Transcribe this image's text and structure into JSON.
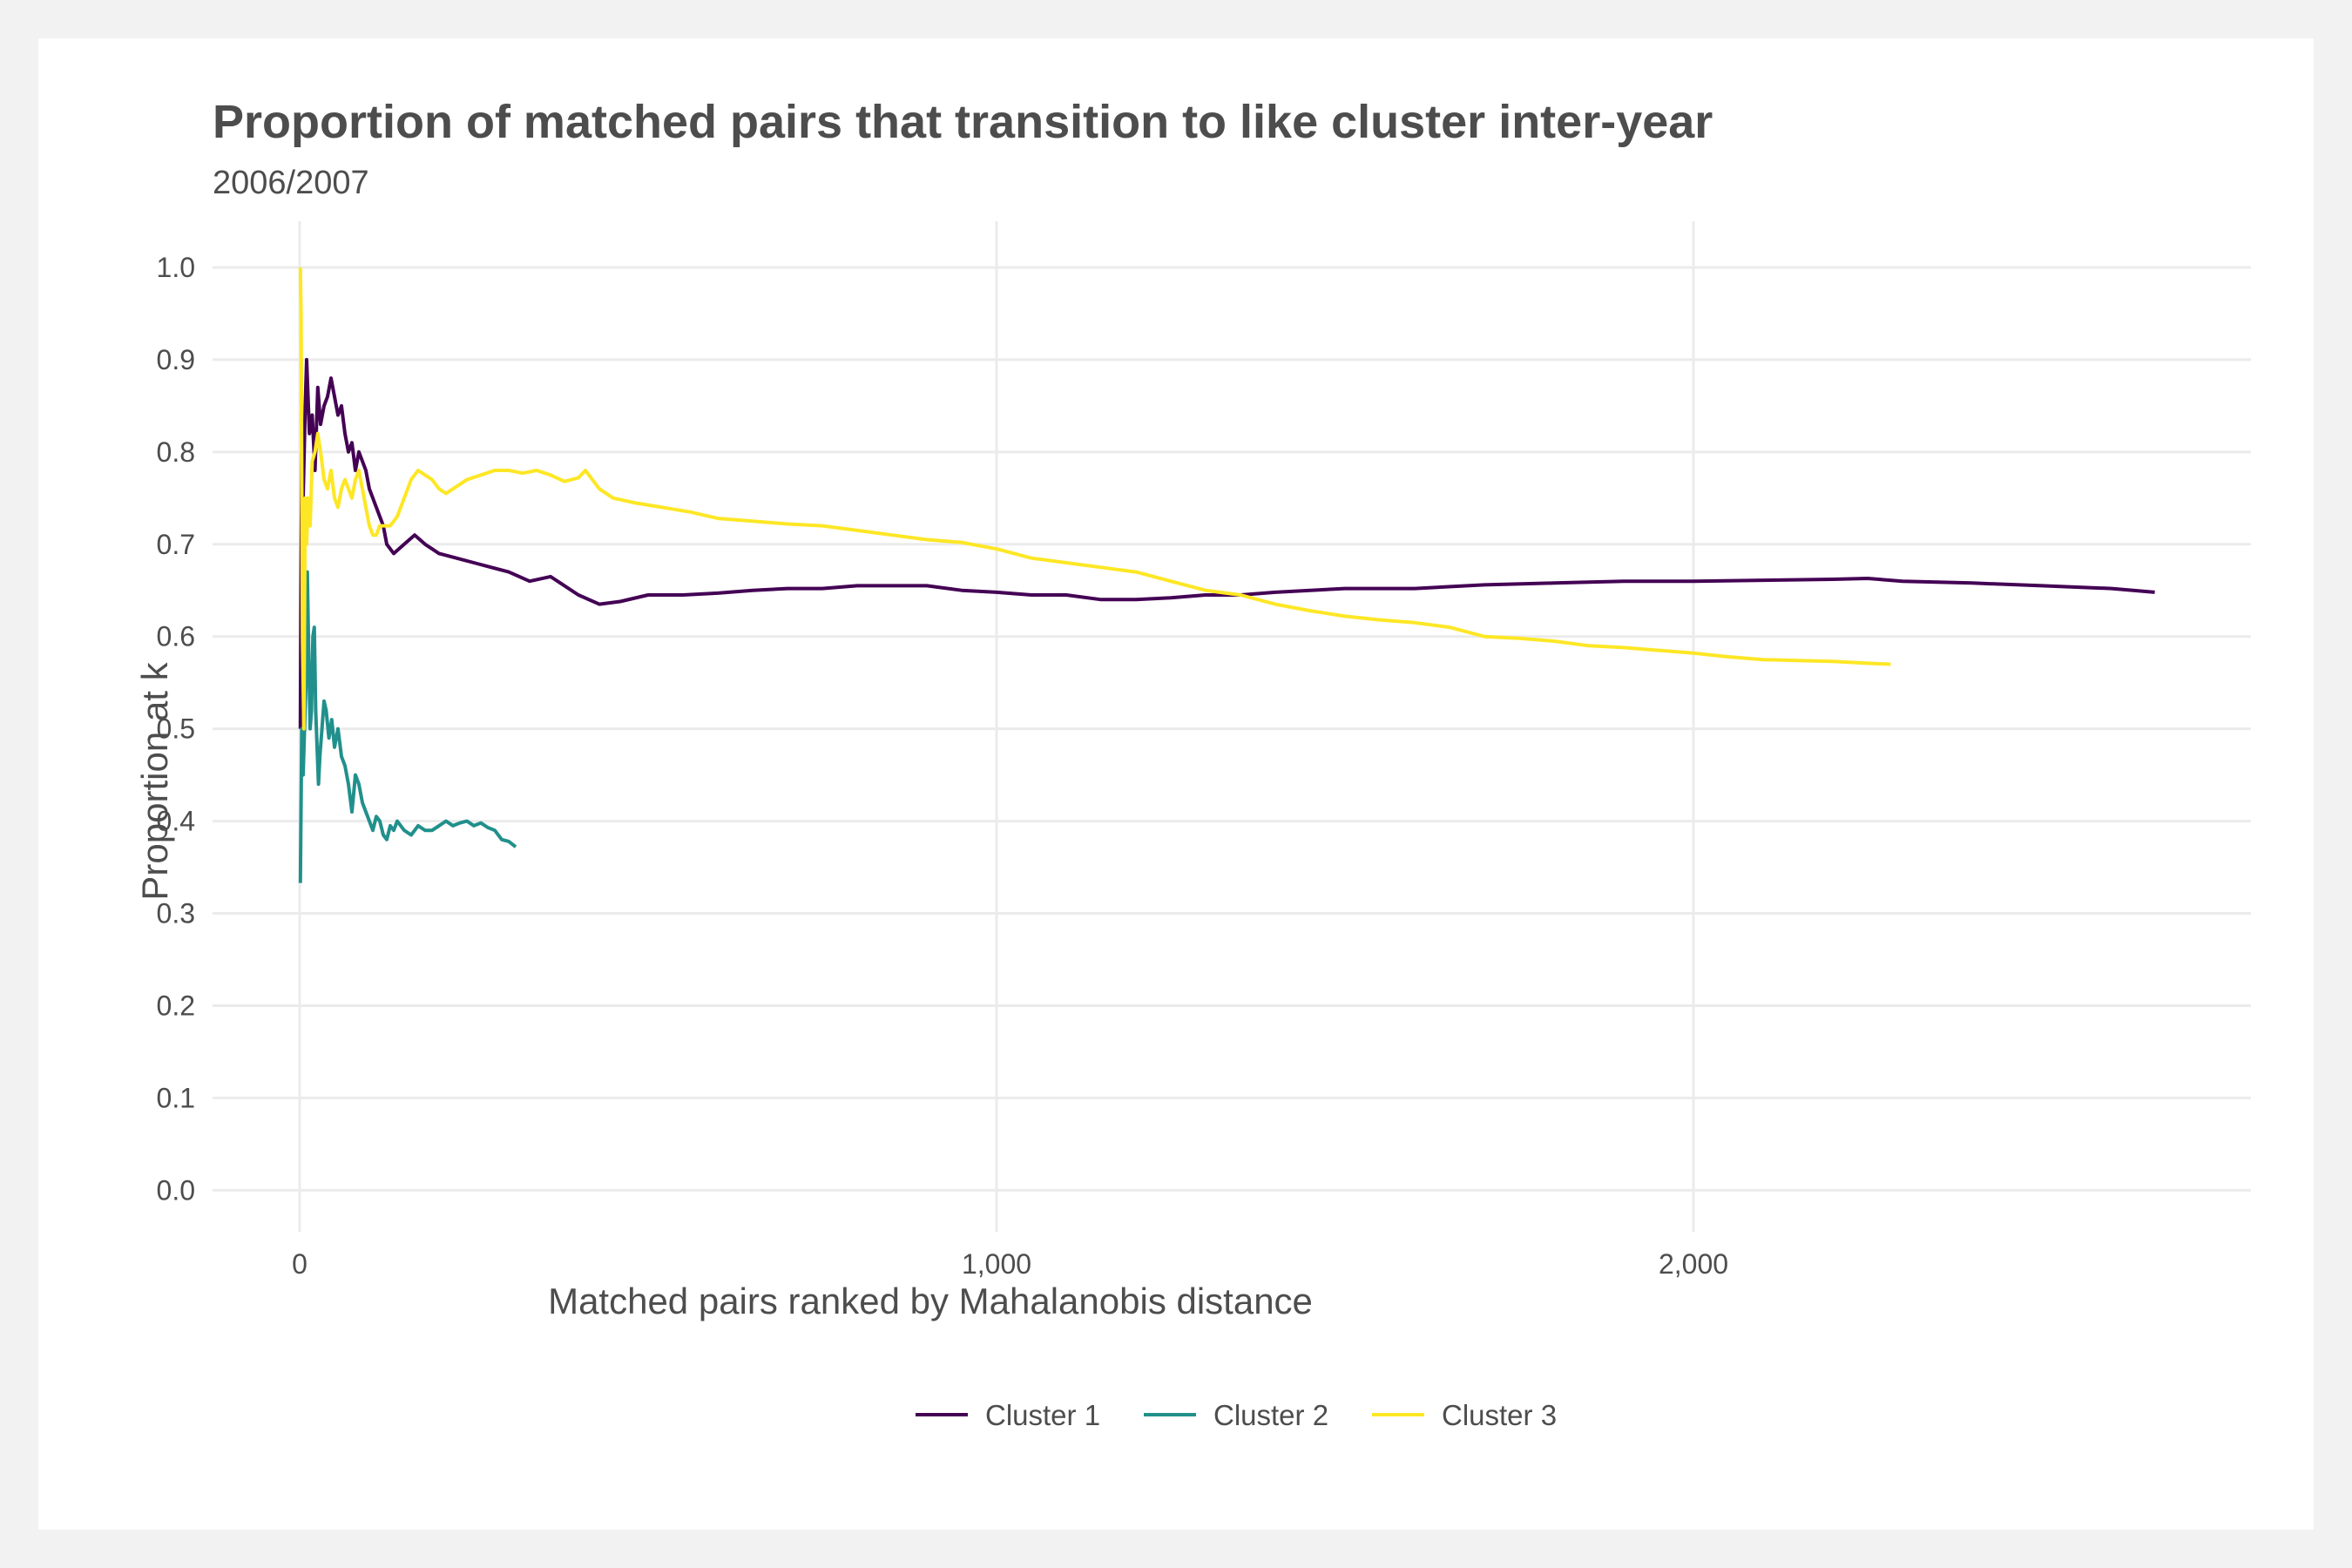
{
  "chart_data": {
    "type": "line",
    "title": "Proportion of matched pairs that transition to like cluster inter-year",
    "subtitle": "2006/2007",
    "xlabel": "Matched pairs ranked by Mahalanobis distance",
    "ylabel": "Proportion at k",
    "xlim": [
      -125,
      2800
    ],
    "ylim": [
      -0.045,
      1.05
    ],
    "x_ticks": [
      0,
      1000,
      2000
    ],
    "x_tick_labels": [
      "0",
      "1,000",
      "2,000"
    ],
    "y_ticks": [
      0.0,
      0.1,
      0.2,
      0.3,
      0.4,
      0.5,
      0.6,
      0.7,
      0.8,
      0.9,
      1.0
    ],
    "y_tick_labels": [
      "0.0",
      "0.1",
      "0.2",
      "0.3",
      "0.4",
      "0.5",
      "0.6",
      "0.7",
      "0.8",
      "0.9",
      "1.0"
    ],
    "grid": true,
    "legend_position": "bottom",
    "series": [
      {
        "name": "Cluster 1",
        "color": "#440154",
        "points": [
          [
            1,
            0.5
          ],
          [
            3,
            0.8
          ],
          [
            5,
            0.75
          ],
          [
            8,
            0.85
          ],
          [
            10,
            0.9
          ],
          [
            14,
            0.82
          ],
          [
            18,
            0.84
          ],
          [
            22,
            0.78
          ],
          [
            26,
            0.87
          ],
          [
            30,
            0.83
          ],
          [
            35,
            0.85
          ],
          [
            40,
            0.86
          ],
          [
            45,
            0.88
          ],
          [
            50,
            0.86
          ],
          [
            55,
            0.84
          ],
          [
            60,
            0.85
          ],
          [
            65,
            0.82
          ],
          [
            70,
            0.8
          ],
          [
            75,
            0.81
          ],
          [
            80,
            0.78
          ],
          [
            85,
            0.8
          ],
          [
            90,
            0.79
          ],
          [
            95,
            0.78
          ],
          [
            100,
            0.76
          ],
          [
            105,
            0.75
          ],
          [
            110,
            0.74
          ],
          [
            115,
            0.73
          ],
          [
            120,
            0.72
          ],
          [
            125,
            0.7
          ],
          [
            135,
            0.69
          ],
          [
            150,
            0.7
          ],
          [
            165,
            0.71
          ],
          [
            180,
            0.7
          ],
          [
            200,
            0.69
          ],
          [
            225,
            0.685
          ],
          [
            250,
            0.68
          ],
          [
            275,
            0.675
          ],
          [
            300,
            0.67
          ],
          [
            330,
            0.66
          ],
          [
            360,
            0.665
          ],
          [
            380,
            0.655
          ],
          [
            400,
            0.645
          ],
          [
            430,
            0.635
          ],
          [
            460,
            0.638
          ],
          [
            500,
            0.645
          ],
          [
            550,
            0.645
          ],
          [
            600,
            0.647
          ],
          [
            650,
            0.65
          ],
          [
            700,
            0.652
          ],
          [
            750,
            0.652
          ],
          [
            800,
            0.655
          ],
          [
            850,
            0.655
          ],
          [
            900,
            0.655
          ],
          [
            950,
            0.65
          ],
          [
            1000,
            0.648
          ],
          [
            1050,
            0.645
          ],
          [
            1100,
            0.645
          ],
          [
            1150,
            0.64
          ],
          [
            1200,
            0.64
          ],
          [
            1250,
            0.642
          ],
          [
            1300,
            0.645
          ],
          [
            1350,
            0.645
          ],
          [
            1400,
            0.648
          ],
          [
            1450,
            0.65
          ],
          [
            1500,
            0.652
          ],
          [
            1600,
            0.652
          ],
          [
            1700,
            0.656
          ],
          [
            1800,
            0.658
          ],
          [
            1900,
            0.66
          ],
          [
            2000,
            0.66
          ],
          [
            2100,
            0.661
          ],
          [
            2200,
            0.662
          ],
          [
            2250,
            0.663
          ],
          [
            2300,
            0.66
          ],
          [
            2400,
            0.658
          ],
          [
            2500,
            0.655
          ],
          [
            2600,
            0.652
          ],
          [
            2662,
            0.648
          ]
        ]
      },
      {
        "name": "Cluster 2",
        "color": "#21908C",
        "points": [
          [
            1,
            0.333
          ],
          [
            3,
            0.5
          ],
          [
            5,
            0.45
          ],
          [
            7,
            0.5
          ],
          [
            9,
            0.55
          ],
          [
            11,
            0.67
          ],
          [
            13,
            0.58
          ],
          [
            15,
            0.5
          ],
          [
            17,
            0.52
          ],
          [
            19,
            0.6
          ],
          [
            21,
            0.61
          ],
          [
            23,
            0.52
          ],
          [
            25,
            0.48
          ],
          [
            27,
            0.44
          ],
          [
            29,
            0.47
          ],
          [
            32,
            0.5
          ],
          [
            35,
            0.53
          ],
          [
            38,
            0.52
          ],
          [
            42,
            0.49
          ],
          [
            46,
            0.51
          ],
          [
            50,
            0.48
          ],
          [
            55,
            0.5
          ],
          [
            60,
            0.47
          ],
          [
            65,
            0.46
          ],
          [
            70,
            0.44
          ],
          [
            75,
            0.41
          ],
          [
            80,
            0.45
          ],
          [
            85,
            0.44
          ],
          [
            90,
            0.42
          ],
          [
            95,
            0.41
          ],
          [
            100,
            0.4
          ],
          [
            105,
            0.39
          ],
          [
            110,
            0.405
          ],
          [
            115,
            0.4
          ],
          [
            120,
            0.385
          ],
          [
            125,
            0.38
          ],
          [
            130,
            0.395
          ],
          [
            135,
            0.39
          ],
          [
            140,
            0.4
          ],
          [
            150,
            0.39
          ],
          [
            160,
            0.385
          ],
          [
            170,
            0.395
          ],
          [
            180,
            0.39
          ],
          [
            190,
            0.39
          ],
          [
            200,
            0.395
          ],
          [
            210,
            0.4
          ],
          [
            220,
            0.395
          ],
          [
            230,
            0.398
          ],
          [
            240,
            0.4
          ],
          [
            250,
            0.395
          ],
          [
            260,
            0.398
          ],
          [
            270,
            0.393
          ],
          [
            280,
            0.39
          ],
          [
            290,
            0.38
          ],
          [
            300,
            0.378
          ],
          [
            310,
            0.372
          ]
        ]
      },
      {
        "name": "Cluster 3",
        "color": "#FDE725",
        "points": [
          [
            1,
            1.0
          ],
          [
            2,
            0.95
          ],
          [
            4,
            0.6
          ],
          [
            6,
            0.5
          ],
          [
            8,
            0.75
          ],
          [
            10,
            0.7
          ],
          [
            12,
            0.75
          ],
          [
            15,
            0.72
          ],
          [
            18,
            0.79
          ],
          [
            22,
            0.8
          ],
          [
            26,
            0.82
          ],
          [
            30,
            0.8
          ],
          [
            35,
            0.77
          ],
          [
            40,
            0.76
          ],
          [
            45,
            0.78
          ],
          [
            50,
            0.75
          ],
          [
            55,
            0.74
          ],
          [
            60,
            0.76
          ],
          [
            65,
            0.77
          ],
          [
            70,
            0.76
          ],
          [
            75,
            0.75
          ],
          [
            80,
            0.77
          ],
          [
            85,
            0.78
          ],
          [
            90,
            0.76
          ],
          [
            95,
            0.74
          ],
          [
            100,
            0.72
          ],
          [
            105,
            0.71
          ],
          [
            110,
            0.71
          ],
          [
            115,
            0.72
          ],
          [
            120,
            0.72
          ],
          [
            130,
            0.72
          ],
          [
            140,
            0.73
          ],
          [
            150,
            0.75
          ],
          [
            160,
            0.77
          ],
          [
            170,
            0.78
          ],
          [
            180,
            0.775
          ],
          [
            190,
            0.77
          ],
          [
            200,
            0.76
          ],
          [
            210,
            0.755
          ],
          [
            220,
            0.76
          ],
          [
            230,
            0.765
          ],
          [
            240,
            0.77
          ],
          [
            260,
            0.775
          ],
          [
            280,
            0.78
          ],
          [
            300,
            0.78
          ],
          [
            320,
            0.777
          ],
          [
            340,
            0.78
          ],
          [
            360,
            0.775
          ],
          [
            380,
            0.768
          ],
          [
            400,
            0.772
          ],
          [
            410,
            0.78
          ],
          [
            420,
            0.77
          ],
          [
            430,
            0.76
          ],
          [
            450,
            0.75
          ],
          [
            480,
            0.745
          ],
          [
            520,
            0.74
          ],
          [
            560,
            0.735
          ],
          [
            600,
            0.728
          ],
          [
            650,
            0.725
          ],
          [
            700,
            0.722
          ],
          [
            750,
            0.72
          ],
          [
            800,
            0.715
          ],
          [
            850,
            0.71
          ],
          [
            900,
            0.705
          ],
          [
            950,
            0.702
          ],
          [
            1000,
            0.695
          ],
          [
            1050,
            0.685
          ],
          [
            1100,
            0.68
          ],
          [
            1150,
            0.675
          ],
          [
            1200,
            0.67
          ],
          [
            1250,
            0.66
          ],
          [
            1300,
            0.65
          ],
          [
            1350,
            0.645
          ],
          [
            1400,
            0.635
          ],
          [
            1450,
            0.628
          ],
          [
            1500,
            0.622
          ],
          [
            1550,
            0.618
          ],
          [
            1600,
            0.615
          ],
          [
            1650,
            0.61
          ],
          [
            1700,
            0.6
          ],
          [
            1750,
            0.598
          ],
          [
            1800,
            0.595
          ],
          [
            1850,
            0.59
          ],
          [
            1900,
            0.588
          ],
          [
            1950,
            0.585
          ],
          [
            2000,
            0.582
          ],
          [
            2050,
            0.578
          ],
          [
            2100,
            0.575
          ],
          [
            2150,
            0.574
          ],
          [
            2200,
            0.573
          ],
          [
            2250,
            0.571
          ],
          [
            2283,
            0.57
          ]
        ]
      }
    ]
  }
}
